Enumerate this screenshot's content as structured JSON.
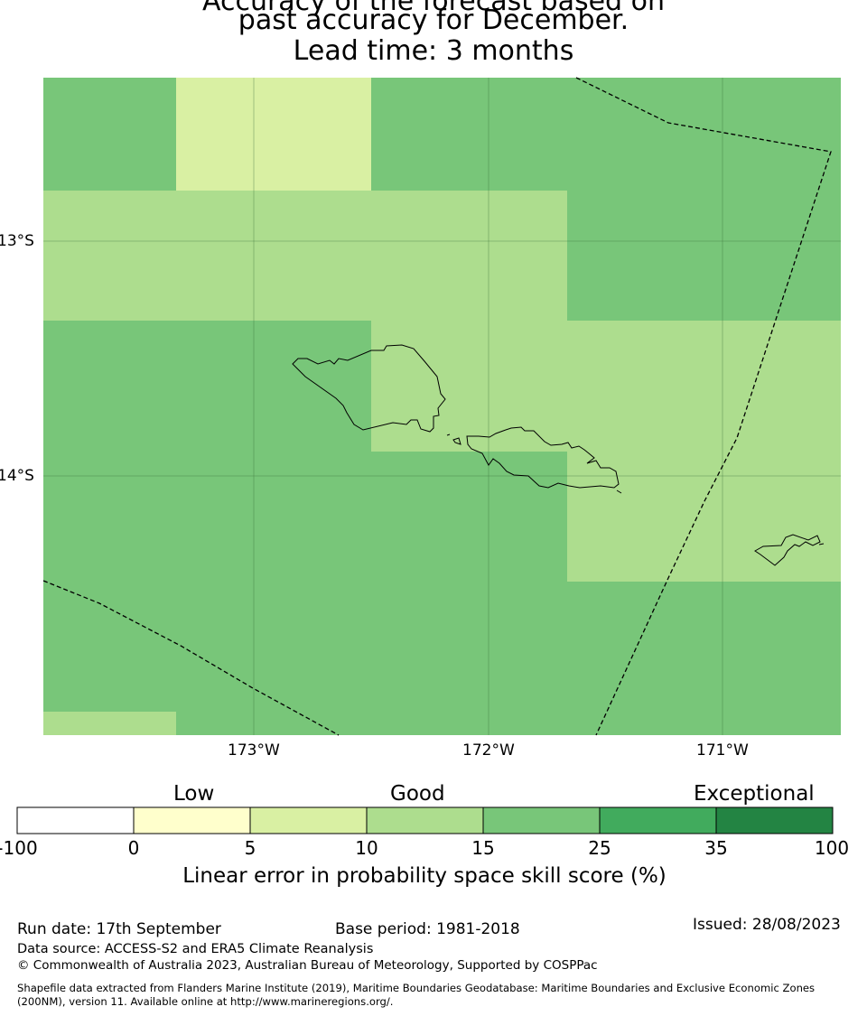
{
  "title": {
    "line1": "Accuracy of the forecast based on",
    "line2": "past accuracy for December.",
    "line3": "Lead time: 3 months"
  },
  "map": {
    "lat_labels": [
      "13°S",
      "14°S"
    ],
    "lon_labels": [
      "173°W",
      "172°W",
      "171°W"
    ]
  },
  "colorbar": {
    "categories": [
      "Low",
      "Good",
      "Exceptional"
    ],
    "ticks": [
      "-100",
      "0",
      "5",
      "10",
      "15",
      "25",
      "35",
      "100"
    ],
    "colors": [
      "#ffffff",
      "#ffffcc",
      "#d9f0a3",
      "#addd8e",
      "#78c679",
      "#41ab5d",
      "#238443"
    ],
    "label": "Linear error in probability space skill score (%)"
  },
  "footer": {
    "run_date": "Run date: 17th September",
    "base_period": "Base period: 1981-2018",
    "issued": "Issued: 28/08/2023",
    "data_source": "Data source: ACCESS-S2 and ERA5 Climate Reanalysis",
    "copyright": "© Commonwealth of Australia 2023, Australian Bureau of Meteorology, Supported by COSPPac",
    "shapefile_line1": "Shapefile data extracted from Flanders Marine Institute (2019), Maritime Boundaries Geodatabase: Maritime Boundaries and Exclusive Economic Zones",
    "shapefile_line2": "(200NM), version 11. Available online at http://www.marineregions.org/."
  }
}
